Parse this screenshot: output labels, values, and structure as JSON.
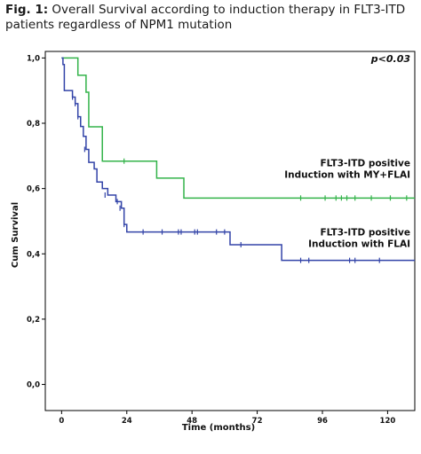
{
  "caption": {
    "label": "Fig. 1:",
    "text": " Overall Survival according to induction therapy in FLT3-ITD patients regardless of NPM1 mutation"
  },
  "chart_data": {
    "type": "line",
    "subtype": "kaplan-meier-step",
    "xlabel": "Time (months)",
    "ylabel": "Cum Survival",
    "xlim": [
      -6,
      130
    ],
    "ylim": [
      -0.08,
      1.02
    ],
    "x_ticks": [
      0,
      24,
      48,
      72,
      96,
      120
    ],
    "y_ticks": [
      0.0,
      0.2,
      0.4,
      0.6,
      0.8,
      1.0
    ],
    "y_tick_labels": [
      "0,0",
      "0,2",
      "0,4",
      "0,6",
      "0,8",
      "1,0"
    ],
    "annotation": "p<0.03",
    "grid": false,
    "series": [
      {
        "label_lines": [
          "FLT3-ITD positive",
          "Induction with MY+FLAI"
        ],
        "color": "#33b34a",
        "steps": [
          [
            0,
            1.0
          ],
          [
            6,
            0.947
          ],
          [
            9,
            0.895
          ],
          [
            10,
            0.789
          ],
          [
            15,
            0.684
          ],
          [
            35,
            0.632
          ],
          [
            45,
            0.571
          ],
          [
            130,
            0.571
          ]
        ],
        "censored": [
          [
            23,
            0.684
          ],
          [
            88,
            0.571
          ],
          [
            97,
            0.571
          ],
          [
            101,
            0.571
          ],
          [
            103,
            0.571
          ],
          [
            105,
            0.571
          ],
          [
            108,
            0.571
          ],
          [
            114,
            0.571
          ],
          [
            121,
            0.571
          ],
          [
            127,
            0.571
          ]
        ]
      },
      {
        "label_lines": [
          "FLT3-ITD positive",
          "Induction with FLAI"
        ],
        "color": "#3344a8",
        "steps": [
          [
            0,
            1.0
          ],
          [
            0.5,
            0.98
          ],
          [
            1,
            0.9
          ],
          [
            4,
            0.88
          ],
          [
            5,
            0.86
          ],
          [
            6,
            0.82
          ],
          [
            7,
            0.79
          ],
          [
            8,
            0.76
          ],
          [
            9,
            0.72
          ],
          [
            10,
            0.68
          ],
          [
            12,
            0.66
          ],
          [
            13,
            0.62
          ],
          [
            15,
            0.6
          ],
          [
            17,
            0.58
          ],
          [
            20,
            0.56
          ],
          [
            22,
            0.54
          ],
          [
            23,
            0.49
          ],
          [
            24,
            0.467
          ],
          [
            62,
            0.428
          ],
          [
            81,
            0.38
          ],
          [
            130,
            0.38
          ]
        ],
        "censored": [
          [
            4,
            0.88
          ],
          [
            5,
            0.86
          ],
          [
            6,
            0.82
          ],
          [
            8.5,
            0.72
          ],
          [
            16,
            0.58
          ],
          [
            20.5,
            0.56
          ],
          [
            21.5,
            0.54
          ],
          [
            23,
            0.49
          ],
          [
            30,
            0.467
          ],
          [
            37,
            0.467
          ],
          [
            43,
            0.467
          ],
          [
            44,
            0.467
          ],
          [
            49,
            0.467
          ],
          [
            50,
            0.467
          ],
          [
            57,
            0.467
          ],
          [
            60,
            0.467
          ],
          [
            66,
            0.428
          ],
          [
            88,
            0.38
          ],
          [
            91,
            0.38
          ],
          [
            106,
            0.38
          ],
          [
            108,
            0.38
          ],
          [
            117,
            0.38
          ]
        ]
      }
    ]
  }
}
